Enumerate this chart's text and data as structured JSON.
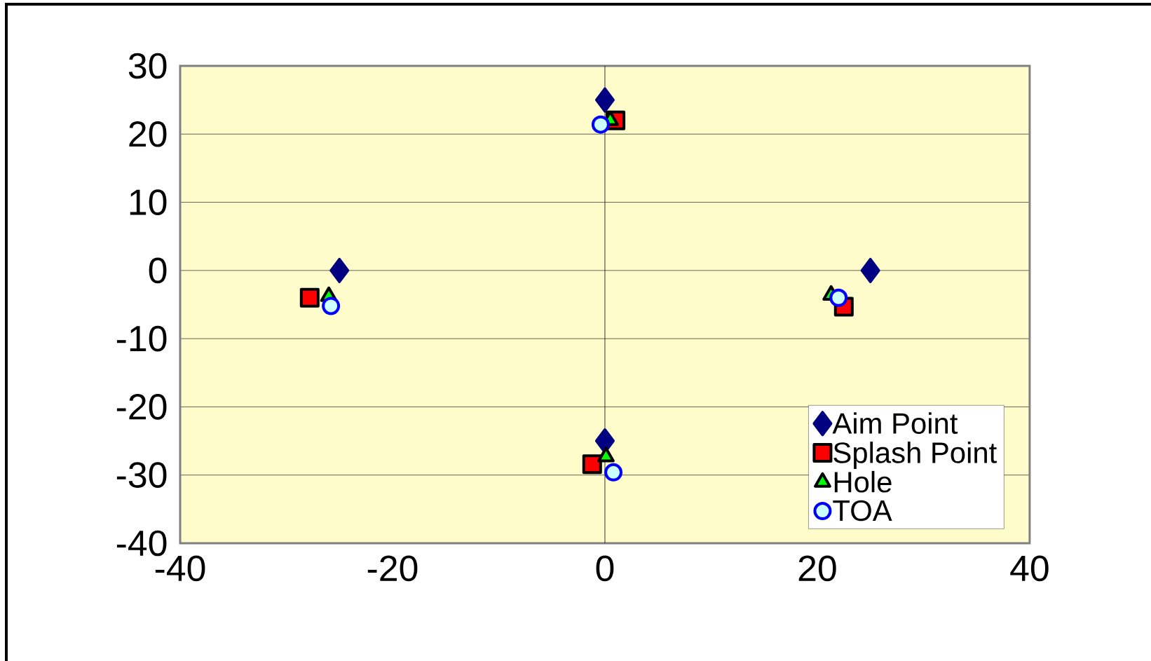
{
  "chart_data": {
    "type": "scatter",
    "series": [
      {
        "name": "Aim Point",
        "color": "#000080",
        "marker": "diamond",
        "x": [
          0,
          -25,
          25,
          0
        ],
        "values": [
          25,
          0,
          0,
          -25
        ]
      },
      {
        "name": "Splash Point",
        "color": "#ff0000",
        "marker": "square",
        "x": [
          1.0,
          -27.8,
          22.5,
          -1.2
        ],
        "values": [
          22.0,
          -4.0,
          -5.3,
          -28.4
        ]
      },
      {
        "name": "Hole",
        "color": "#00ff00",
        "marker": "triangle",
        "x": [
          0.5,
          -26.0,
          21.3,
          0.1
        ],
        "values": [
          22.0,
          -3.8,
          -3.6,
          -27.3
        ]
      },
      {
        "name": "TOA",
        "color": "#ccffff",
        "marker": "circle",
        "x": [
          -0.4,
          -25.8,
          22.0,
          0.8
        ],
        "values": [
          21.4,
          -5.2,
          -4.0,
          -29.6
        ]
      }
    ],
    "xlim": [
      -40,
      40
    ],
    "ylim": [
      -40,
      30
    ],
    "xticks": [
      -40,
      -20,
      0,
      20,
      40
    ],
    "yticks": [
      -40,
      -30,
      -20,
      -10,
      0,
      10,
      20,
      30
    ],
    "ref_lines": [
      {
        "axis": "x",
        "value": 0
      }
    ],
    "grid": "y",
    "legend": "bottom right"
  }
}
